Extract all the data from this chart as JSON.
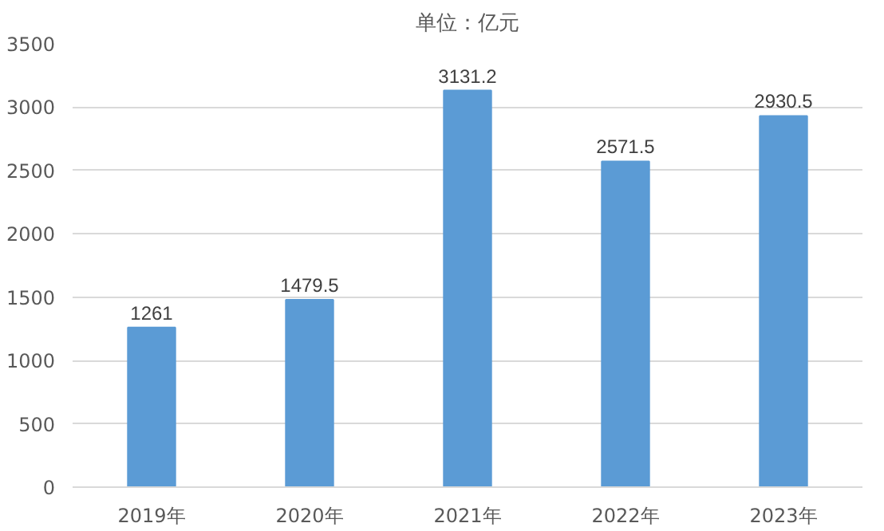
{
  "chart_data": {
    "type": "bar",
    "title": "单位：亿元",
    "categories": [
      "2019年",
      "2020年",
      "2021年",
      "2022年",
      "2023年"
    ],
    "values": [
      1261,
      1479.5,
      3131.2,
      2571.5,
      2930.5
    ],
    "color": "#5b9bd5",
    "data_labels": true,
    "ylim": [
      0,
      3500
    ],
    "yticks": [
      0,
      500,
      1000,
      1500,
      2000,
      2500,
      3000,
      3500
    ],
    "grid": "y"
  }
}
